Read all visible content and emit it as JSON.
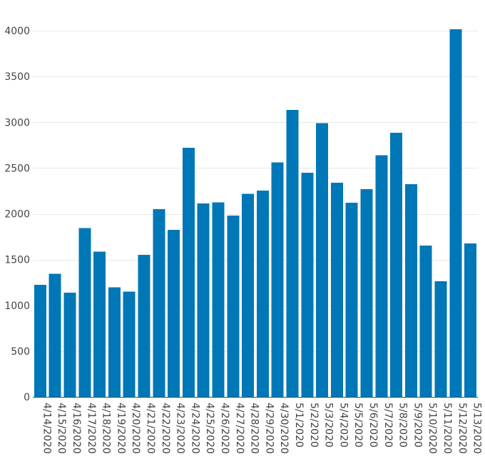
{
  "chart_data": {
    "type": "bar",
    "title": "",
    "xlabel": "",
    "ylabel": "",
    "ylim": [
      0,
      4000
    ],
    "yticks": [
      0,
      500,
      1000,
      1500,
      2000,
      2500,
      3000,
      3500,
      4000
    ],
    "grid": true,
    "legend": "none",
    "bar_color": "#0077b6",
    "categories": [
      "4/14/2020",
      "4/15/2020",
      "4/16/2020",
      "4/17/2020",
      "4/18/2020",
      "4/19/2020",
      "4/20/2020",
      "4/21/2020",
      "4/22/2020",
      "4/23/2020",
      "4/24/2020",
      "4/25/2020",
      "4/26/2020",
      "4/27/2020",
      "4/28/2020",
      "4/29/2020",
      "4/30/2020",
      "5/1/2020",
      "5/2/2020",
      "5/3/2020",
      "5/4/2020",
      "5/5/2020",
      "5/6/2020",
      "5/7/2020",
      "5/8/2020",
      "5/9/2020",
      "5/10/2020",
      "5/11/2020",
      "5/12/2020",
      "5/13/2020"
    ],
    "values": [
      1225,
      1345,
      1140,
      1845,
      1585,
      1195,
      1150,
      1550,
      2050,
      1825,
      2720,
      2115,
      2125,
      1980,
      2220,
      2255,
      2560,
      3135,
      2450,
      2990,
      2340,
      2120,
      2270,
      2640,
      2885,
      2325,
      1655,
      1265,
      4015,
      1675
    ]
  }
}
